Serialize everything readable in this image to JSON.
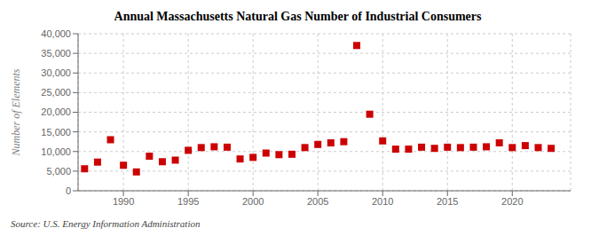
{
  "chart_data": {
    "type": "scatter",
    "title": "Annual Massachusetts Natural Gas Number of Industrial Consumers",
    "y_label": "Number of Elements",
    "annotations": [
      "Source: U.S. Energy Information Administration"
    ],
    "x": [
      1987,
      1988,
      1989,
      1990,
      1991,
      1992,
      1993,
      1994,
      1995,
      1996,
      1997,
      1998,
      1999,
      2000,
      2001,
      2002,
      2003,
      2004,
      2005,
      2006,
      2007,
      2008,
      2009,
      2010,
      2011,
      2012,
      2013,
      2014,
      2015,
      2016,
      2017,
      2018,
      2019,
      2020,
      2021,
      2022,
      2023
    ],
    "values": [
      5600,
      7300,
      13000,
      6500,
      4800,
      8800,
      7400,
      7800,
      10300,
      11000,
      11200,
      11100,
      8100,
      8500,
      9600,
      9200,
      9300,
      11000,
      11800,
      12200,
      12500,
      37000,
      19500,
      12700,
      10600,
      10600,
      11100,
      10800,
      11100,
      11000,
      11100,
      11200,
      12200,
      11000,
      11500,
      11000,
      10800
    ],
    "color": "#cc0000",
    "marker": "square",
    "xlim": [
      1986.5,
      2024.5
    ],
    "xticks": [
      1990,
      1995,
      2000,
      2005,
      2010,
      2015,
      2020
    ],
    "ylim": [
      0,
      40000
    ],
    "yticks": [
      0,
      {
        "value": 5000,
        "label": "5,000"
      },
      {
        "value": 10000,
        "label": "10,000"
      },
      {
        "value": 15000,
        "label": "15,000"
      },
      {
        "value": 20000,
        "label": "20,000"
      },
      {
        "value": 25000,
        "label": "25,000"
      },
      {
        "value": 30000,
        "label": "30,000"
      },
      {
        "value": 35000,
        "label": "35,000"
      },
      {
        "value": 40000,
        "label": "40,000"
      }
    ],
    "grid": true
  }
}
